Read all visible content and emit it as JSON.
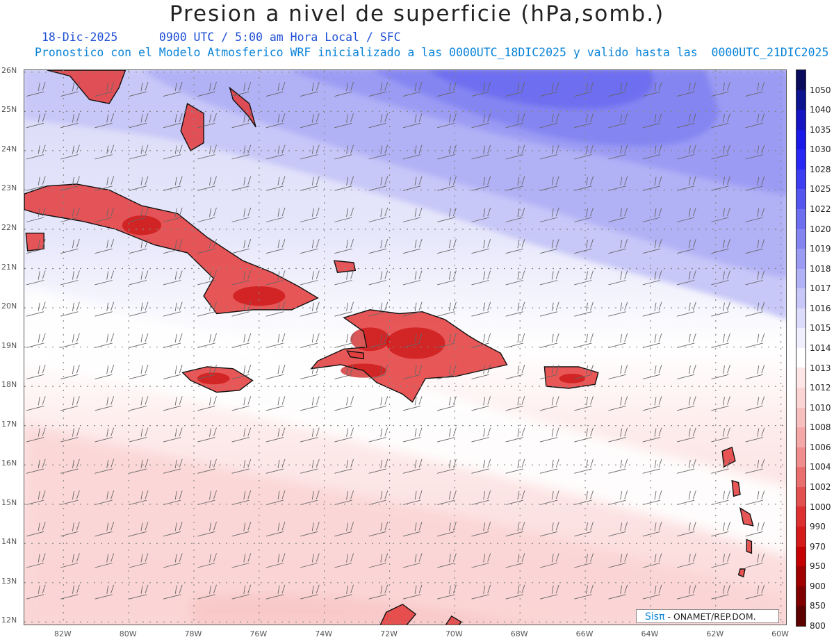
{
  "header": {
    "title": "Presion a nivel de superficie (hPa,somb.)",
    "date": "18-Dic-2025",
    "time": "0900 UTC / 5:00 am Hora Local / SFC",
    "forecast": "Pronostico con el Modelo Atmosferico WRF inicializado a las 0000UTC_18DIC2025 y valido hasta las  0000UTC_21DIC2025"
  },
  "axes": {
    "lat_labels": [
      "26N",
      "25N",
      "24N",
      "23N",
      "22N",
      "21N",
      "20N",
      "19N",
      "18N",
      "17N",
      "16N",
      "15N",
      "14N",
      "13N",
      "12N"
    ],
    "lon_labels": [
      "82W",
      "80W",
      "78W",
      "76W",
      "74W",
      "72W",
      "70W",
      "68W",
      "66W",
      "64W",
      "62W",
      "60W"
    ]
  },
  "map": {
    "extent": {
      "lon": [
        -83.2,
        -59.8
      ],
      "lat": [
        11.9,
        26.05
      ]
    },
    "pressure_field_hpa": [
      {
        "band": "north",
        "value": "1019-1022"
      },
      {
        "band": "central",
        "value": "1014-1017"
      },
      {
        "band": "south",
        "value": "1010-1013"
      },
      {
        "band": "land",
        "value": "<=1004"
      }
    ]
  },
  "colorbar": {
    "levels": [
      "1050",
      "1040",
      "1035",
      "1030",
      "1028",
      "1025",
      "1022",
      "1020",
      "1019",
      "1018",
      "1017",
      "1016",
      "1015",
      "1014",
      "1013",
      "1012",
      "1010",
      "1008",
      "1006",
      "1004",
      "1002",
      "1000",
      "990",
      "970",
      "950",
      "900",
      "850",
      "800"
    ],
    "colors": [
      "#0b0b5e",
      "#0d1490",
      "#1515c4",
      "#1a1ae8",
      "#2828f5",
      "#3d3df2",
      "#5555f0",
      "#6e6ef0",
      "#8585f2",
      "#9b9bf4",
      "#b1b1f6",
      "#c7c7f8",
      "#dcdcfa",
      "#efeffd",
      "#ffffff",
      "#fde6e6",
      "#fbd4d4",
      "#f8bfbf",
      "#f5a8a8",
      "#f08e8e",
      "#ea7070",
      "#e35050",
      "#dd3030",
      "#d51a1a",
      "#c40000",
      "#a00000",
      "#800000",
      "#5c0000"
    ]
  },
  "credit": {
    "brand": "Sisπ",
    "text": " - ONAMET/REP.DOM."
  }
}
